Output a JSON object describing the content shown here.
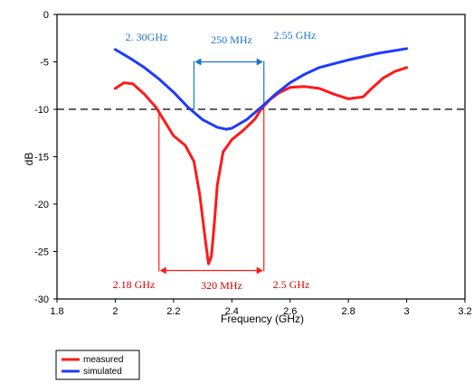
{
  "chart_data": {
    "type": "line",
    "xlabel": "Frequency (GHz)",
    "ylabel": "dB",
    "xlim": [
      1.8,
      3.2
    ],
    "ylim": [
      -30,
      0
    ],
    "xticks": [
      "1.8",
      "2",
      "2.2",
      "2.4",
      "2.6",
      "2.8",
      "3",
      "3.2"
    ],
    "yticks": [
      "0",
      "-5",
      "-10",
      "-15",
      "-20",
      "-25",
      "-30"
    ],
    "reference_line_db": -10,
    "legend_placement": "bottom-left",
    "series": [
      {
        "name": "measured",
        "color": "#ff1a1a",
        "x": [
          2.0,
          2.03,
          2.06,
          2.1,
          2.14,
          2.18,
          2.2,
          2.24,
          2.27,
          2.29,
          2.31,
          2.32,
          2.33,
          2.34,
          2.35,
          2.37,
          2.4,
          2.44,
          2.48,
          2.5,
          2.53,
          2.56,
          2.6,
          2.65,
          2.7,
          2.75,
          2.8,
          2.85,
          2.88,
          2.92,
          2.96,
          3.0
        ],
        "y": [
          -7.8,
          -7.2,
          -7.3,
          -8.4,
          -9.8,
          -11.8,
          -12.8,
          -13.8,
          -15.5,
          -19.0,
          -24.0,
          -26.3,
          -25.5,
          -22.0,
          -18.0,
          -14.5,
          -13.2,
          -12.2,
          -11.0,
          -10.0,
          -9.0,
          -8.3,
          -7.7,
          -7.6,
          -7.8,
          -8.4,
          -8.9,
          -8.7,
          -7.8,
          -6.7,
          -6.0,
          -5.6
        ]
      },
      {
        "name": "simulated",
        "color": "#1f3bff",
        "x": [
          2.0,
          2.05,
          2.1,
          2.15,
          2.2,
          2.25,
          2.3,
          2.35,
          2.38,
          2.4,
          2.45,
          2.5,
          2.55,
          2.6,
          2.65,
          2.7,
          2.8,
          2.9,
          3.0
        ],
        "y": [
          -3.7,
          -4.6,
          -5.6,
          -6.8,
          -8.2,
          -9.8,
          -11.1,
          -11.9,
          -12.1,
          -12.0,
          -11.1,
          -9.8,
          -8.4,
          -7.2,
          -6.3,
          -5.6,
          -4.8,
          -4.1,
          -3.6
        ]
      }
    ],
    "annotations": {
      "blue": {
        "left_label": "2. 30GHz",
        "span_label": "250 MHz",
        "right_label": "2.55 GHz",
        "x_left": 2.27,
        "x_right": 2.51,
        "arrow_y_db": -5
      },
      "red": {
        "left_label": "2.18 GHz",
        "span_label": "320 MHz",
        "right_label": "2.5 GHz",
        "x_left": 2.15,
        "x_right": 2.51,
        "arrow_y_db": -27
      }
    }
  }
}
